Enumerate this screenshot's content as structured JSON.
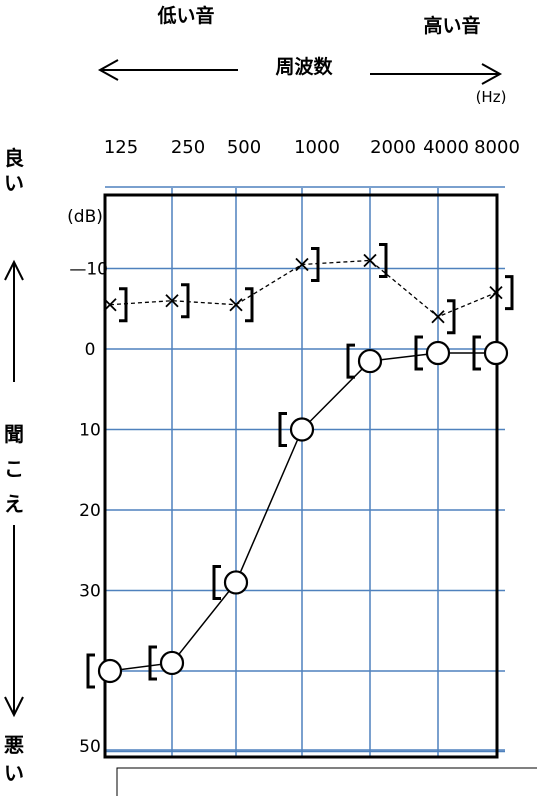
{
  "header": {
    "low_label": "低い音",
    "high_label": "高い音",
    "axis_title": "周波数",
    "unit_hz": "(Hz)"
  },
  "y_side": {
    "good": "良い",
    "hear": "聞こえ",
    "bad": "悪い",
    "unit_db": "(dB)"
  },
  "chart_data": {
    "type": "line",
    "x_ticks": [
      "125",
      "250",
      "500",
      "1000",
      "2000",
      "4000",
      "8000"
    ],
    "y_tick_labels": [
      {
        "label": "—10",
        "value": -10
      },
      {
        "label": "0",
        "value": 0
      },
      {
        "label": "10",
        "value": 10
      },
      {
        "label": "20",
        "value": 20
      },
      {
        "label": "30",
        "value": 30
      },
      {
        "label": "50",
        "value": 50
      }
    ],
    "ylim": [
      -20,
      50
    ],
    "y_inverted": true,
    "grid": true,
    "series": [
      {
        "marker": "circle",
        "line": "solid",
        "x": [
          125,
          250,
          500,
          1000,
          2000,
          4000,
          8000
        ],
        "y": [
          40,
          39,
          29,
          10,
          1.5,
          0.5,
          0.5
        ],
        "bracket": "left"
      },
      {
        "marker": "x",
        "line": "dashed",
        "x": [
          125,
          250,
          500,
          1000,
          2000,
          4000,
          8000
        ],
        "y": [
          -5.5,
          -6,
          -5.5,
          -10.5,
          -11,
          -4,
          -7
        ],
        "bracket": "right"
      }
    ],
    "colors": {
      "grid": "#4f81bd",
      "frame": "#000000",
      "marks": "#000000"
    }
  }
}
